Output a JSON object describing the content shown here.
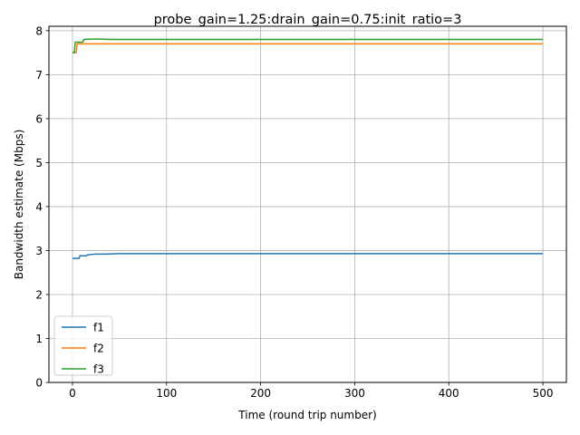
{
  "chart_data": {
    "type": "line",
    "title": "probe_gain=1.25:drain_gain=0.75:init_ratio=3",
    "xlabel": "Time (round trip number)",
    "ylabel": "Bandwidth estimate (Mbps)",
    "xlim": [
      -25,
      525
    ],
    "ylim": [
      0,
      8.1
    ],
    "xticks": [
      0,
      100,
      200,
      300,
      400,
      500
    ],
    "yticks": [
      0,
      1,
      2,
      3,
      4,
      5,
      6,
      7,
      8
    ],
    "grid": true,
    "legend_position": "lower-left",
    "series": [
      {
        "name": "f1",
        "color": "#1f77b4",
        "x": [
          0,
          7,
          8,
          15,
          16,
          20,
          25,
          35,
          50,
          70,
          100,
          200,
          300,
          400,
          500
        ],
        "y": [
          2.82,
          2.82,
          2.88,
          2.88,
          2.9,
          2.91,
          2.92,
          2.92,
          2.93,
          2.93,
          2.93,
          2.93,
          2.93,
          2.93,
          2.93
        ]
      },
      {
        "name": "f2",
        "color": "#ff7f0e",
        "x": [
          0,
          4,
          5,
          7,
          100,
          200,
          300,
          400,
          500
        ],
        "y": [
          7.5,
          7.5,
          7.7,
          7.7,
          7.7,
          7.7,
          7.7,
          7.7,
          7.7
        ]
      },
      {
        "name": "f3",
        "color": "#2ca02c",
        "x": [
          0,
          2,
          3,
          11,
          12,
          20,
          30,
          40,
          100,
          200,
          300,
          400,
          500
        ],
        "y": [
          7.5,
          7.5,
          7.74,
          7.74,
          7.8,
          7.81,
          7.81,
          7.8,
          7.8,
          7.8,
          7.8,
          7.8,
          7.8
        ]
      }
    ]
  }
}
